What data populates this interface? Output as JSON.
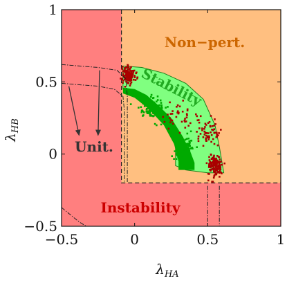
{
  "chart_data": {
    "type": "scatter",
    "title": "",
    "xlabel": "λ",
    "xlabel_sub": "HA",
    "ylabel": "λ",
    "ylabel_sub": "HB",
    "xlim": [
      -0.5,
      1
    ],
    "ylim": [
      -0.5,
      1
    ],
    "xticks": [
      {
        "value": -0.5,
        "label": "−0.5"
      },
      {
        "value": 0,
        "label": "0"
      },
      {
        "value": 0.5,
        "label": "0.5"
      },
      {
        "value": 1,
        "label": "1"
      }
    ],
    "yticks": [
      {
        "value": -0.5,
        "label": "−0.5"
      },
      {
        "value": 0,
        "label": "0"
      },
      {
        "value": 0.5,
        "label": "0.5"
      },
      {
        "value": 1,
        "label": "1"
      }
    ],
    "grid": false,
    "colors": {
      "instability": "#ff7f7f",
      "nonpert": "#ffbf80",
      "stability_light": "#80ff80",
      "stability_dark": "#00aa00",
      "dark_red": "#aa0000",
      "instability_text": "#cc0000",
      "nonpert_text": "#cc6600",
      "stability_text": "#22aa22",
      "unit_text": "#333333"
    },
    "regions": {
      "instability_label": "Instability",
      "nonpert_label": "Non−pert.",
      "stability_label": "Stability",
      "unit_label": "Unit."
    },
    "nonpert_boundary": [
      [
        -0.09,
        1.0
      ],
      [
        -0.09,
        -0.2
      ],
      [
        1.0,
        -0.2
      ]
    ],
    "stability_light_outer": [
      [
        -0.08,
        0.61
      ],
      [
        0.05,
        0.6
      ],
      [
        0.2,
        0.56
      ],
      [
        0.35,
        0.49
      ],
      [
        0.47,
        0.38
      ],
      [
        0.55,
        0.2
      ],
      [
        0.58,
        0.05
      ],
      [
        0.61,
        -0.13
      ],
      [
        0.5,
        -0.13
      ],
      [
        0.35,
        -0.11
      ],
      [
        0.28,
        -0.08
      ],
      [
        0.28,
        0.05
      ],
      [
        0.22,
        0.21
      ],
      [
        0.12,
        0.33
      ],
      [
        0.02,
        0.41
      ],
      [
        -0.08,
        0.45
      ]
    ],
    "stability_dark": [
      [
        -0.08,
        0.46
      ],
      [
        0.0,
        0.45
      ],
      [
        0.08,
        0.41
      ],
      [
        0.16,
        0.34
      ],
      [
        0.25,
        0.25
      ],
      [
        0.33,
        0.12
      ],
      [
        0.38,
        0.02
      ],
      [
        0.41,
        -0.06
      ],
      [
        0.41,
        -0.11
      ],
      [
        0.3,
        -0.11
      ],
      [
        0.3,
        -0.05
      ],
      [
        0.27,
        0.07
      ],
      [
        0.2,
        0.2
      ],
      [
        0.1,
        0.31
      ],
      [
        0.0,
        0.39
      ],
      [
        -0.08,
        0.42
      ]
    ],
    "unitarity_curves": [
      [
        [
          -0.5,
          0.62
        ],
        [
          -0.25,
          0.6
        ],
        [
          -0.12,
          0.58
        ],
        [
          -0.06,
          0.52
        ],
        [
          -0.05,
          0.4
        ],
        [
          -0.05,
          0.0
        ],
        [
          -0.05,
          -0.2
        ]
      ],
      [
        [
          -0.5,
          0.49
        ],
        [
          -0.25,
          0.47
        ],
        [
          -0.14,
          0.45
        ],
        [
          -0.08,
          0.4
        ],
        [
          -0.07,
          0.3
        ],
        [
          -0.07,
          0.0
        ],
        [
          -0.07,
          -0.2
        ]
      ],
      [
        [
          -0.5,
          -0.37
        ],
        [
          -0.38,
          -0.47
        ],
        [
          -0.33,
          -0.5
        ]
      ],
      [
        [
          0.5,
          -0.22
        ],
        [
          0.5,
          -0.5
        ]
      ],
      [
        [
          0.58,
          -0.22
        ],
        [
          0.58,
          -0.5
        ]
      ]
    ],
    "arrows": [
      {
        "from": [
          -0.45,
          0.47
        ],
        "to": [
          -0.38,
          0.13
        ]
      },
      {
        "from": [
          -0.24,
          0.58
        ],
        "to": [
          -0.25,
          0.13
        ]
      }
    ],
    "scatter_clusters": [
      {
        "color": "#aa0000",
        "center": [
          -0.04,
          0.55
        ],
        "spread": [
          0.035,
          0.05
        ],
        "count": 140
      },
      {
        "color": "#aa0000",
        "center": [
          0.55,
          -0.08
        ],
        "spread": [
          0.04,
          0.06
        ],
        "count": 150
      },
      {
        "color": "#aa0000",
        "center": [
          0.5,
          0.15
        ],
        "spread": [
          0.07,
          0.08
        ],
        "count": 60
      },
      {
        "color": "#aa0000",
        "center": [
          0.3,
          0.25
        ],
        "spread": [
          0.1,
          0.08
        ],
        "count": 40
      },
      {
        "color": "#00aa00",
        "center": [
          0.12,
          0.32
        ],
        "spread": [
          0.07,
          0.06
        ],
        "count": 120
      },
      {
        "color": "#00aa00",
        "center": [
          0.33,
          0.05
        ],
        "spread": [
          0.05,
          0.07
        ],
        "count": 120
      }
    ]
  }
}
